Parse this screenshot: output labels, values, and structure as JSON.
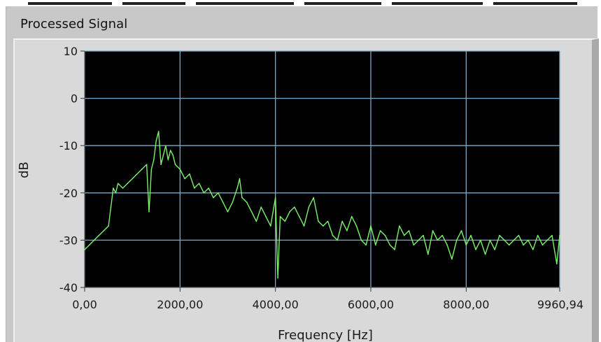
{
  "panel": {
    "title": "Processed Signal"
  },
  "colors": {
    "plot_background": "#000000",
    "grid": "#7aa8c8",
    "trace": "#7cf26c",
    "panel": "#c8c8c8"
  },
  "chart_data": {
    "type": "line",
    "xlabel": "Frequency [Hz]",
    "ylabel": "dB",
    "xlim": [
      0,
      9960.94
    ],
    "ylim": [
      -40,
      10
    ],
    "x_ticks": [
      0,
      2000,
      4000,
      6000,
      8000,
      9960.94
    ],
    "x_tick_labels": [
      "0,00",
      "2000,00",
      "4000,00",
      "6000,00",
      "8000,00",
      "9960,94"
    ],
    "y_ticks": [
      10,
      0,
      -10,
      -20,
      -30,
      -40
    ],
    "y_tick_labels": [
      "10",
      "0",
      "-10",
      "-20",
      "-30",
      "-40"
    ],
    "grid": true,
    "series": [
      {
        "x": [
          0,
          100,
          200,
          300,
          400,
          500,
          550,
          600,
          650,
          700,
          800,
          900,
          1000,
          1100,
          1200,
          1300,
          1350,
          1400,
          1450,
          1500,
          1550,
          1600,
          1650,
          1700,
          1750,
          1800,
          1850,
          1900,
          2000,
          2100,
          2200,
          2300,
          2400,
          2500,
          2600,
          2700,
          2800,
          2900,
          3000,
          3100,
          3200,
          3250,
          3300,
          3400,
          3500,
          3600,
          3700,
          3800,
          3900,
          4000,
          4050,
          4100,
          4200,
          4300,
          4400,
          4500,
          4600,
          4700,
          4800,
          4900,
          5000,
          5100,
          5200,
          5300,
          5400,
          5500,
          5600,
          5700,
          5800,
          5900,
          6000,
          6100,
          6200,
          6300,
          6400,
          6500,
          6600,
          6700,
          6800,
          6900,
          7000,
          7100,
          7200,
          7300,
          7400,
          7500,
          7600,
          7700,
          7800,
          7900,
          8000,
          8100,
          8200,
          8300,
          8400,
          8500,
          8600,
          8700,
          8800,
          8900,
          9000,
          9100,
          9200,
          9300,
          9400,
          9500,
          9600,
          9700,
          9800,
          9900,
          9960.94
        ],
        "y": [
          -32,
          -31,
          -30,
          -29,
          -28,
          -27,
          -23,
          -19,
          -20,
          -18,
          -19,
          -18,
          -17,
          -16,
          -15,
          -14,
          -24,
          -15,
          -13,
          -9,
          -7,
          -14,
          -12,
          -10,
          -13,
          -11,
          -12,
          -14,
          -15,
          -17,
          -16,
          -19,
          -18,
          -20,
          -19,
          -21,
          -20,
          -22,
          -24,
          -22,
          -19,
          -17,
          -21,
          -22,
          -24,
          -26,
          -23,
          -25,
          -27,
          -21,
          -38,
          -25,
          -26,
          -24,
          -23,
          -25,
          -27,
          -23,
          -21,
          -26,
          -27,
          -26,
          -29,
          -30,
          -26,
          -28,
          -25,
          -27,
          -30,
          -31,
          -27,
          -31,
          -28,
          -29,
          -31,
          -32,
          -27,
          -29,
          -28,
          -31,
          -30,
          -29,
          -33,
          -28,
          -30,
          -29,
          -31,
          -34,
          -30,
          -28,
          -31,
          -29,
          -32,
          -30,
          -33,
          -30,
          -32,
          -29,
          -30,
          -31,
          -30,
          -29,
          -31,
          -30,
          -32,
          -29,
          -31,
          -30,
          -29,
          -35,
          -29
        ]
      }
    ]
  }
}
